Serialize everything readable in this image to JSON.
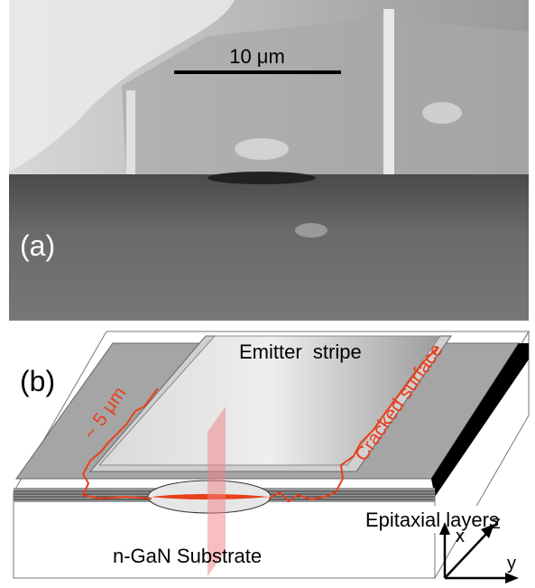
{
  "panel_a": {
    "label": "(a)",
    "scale_bar": "10 μm"
  },
  "panel_b": {
    "label": "(b)",
    "emitter": "Emitter  stripe",
    "crack_width": "~ 5 μm",
    "cracked_surface": "Cracked surface",
    "epitaxial": "Epitaxial layers",
    "substrate": "n-GaN Substrate",
    "axes": {
      "x": "x",
      "z": "z",
      "y": "y"
    }
  }
}
